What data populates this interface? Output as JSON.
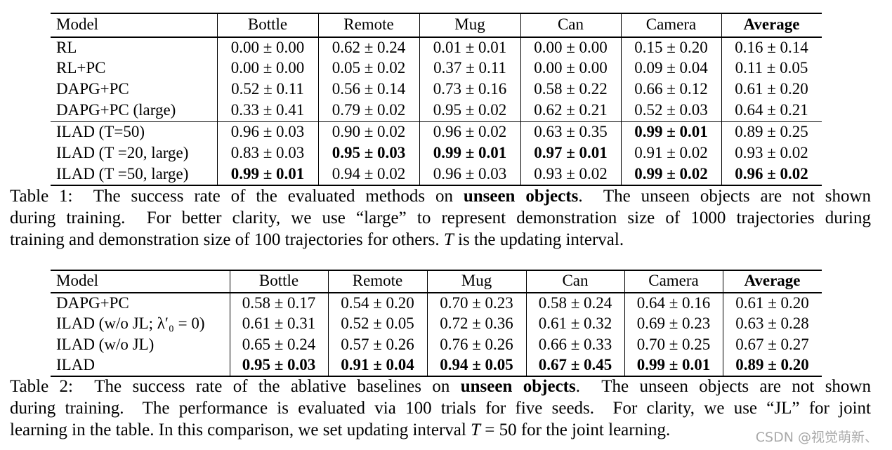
{
  "tables": [
    {
      "header": [
        "Model",
        "Bottle",
        "Remote",
        "Mug",
        "Can",
        "Camera",
        "Average"
      ],
      "header_bold": [
        false,
        false,
        false,
        false,
        false,
        false,
        true
      ],
      "rows": [
        {
          "model": "RL",
          "values": [
            "0.00 ± 0.00",
            "0.62 ± 0.24",
            "0.01 ± 0.01",
            "0.00 ± 0.00",
            "0.15 ± 0.20",
            "0.16 ± 0.14"
          ],
          "bold": [
            false,
            false,
            false,
            false,
            false,
            false
          ]
        },
        {
          "model": "RL+PC",
          "values": [
            "0.00 ± 0.00",
            "0.05 ± 0.02",
            "0.37 ± 0.11",
            "0.00 ± 0.00",
            "0.09 ± 0.04",
            "0.11 ± 0.05"
          ],
          "bold": [
            false,
            false,
            false,
            false,
            false,
            false
          ]
        },
        {
          "model": "DAPG+PC",
          "values": [
            "0.52 ± 0.11",
            "0.56 ± 0.14",
            "0.73 ± 0.16",
            "0.58 ± 0.22",
            "0.66 ± 0.12",
            "0.61 ± 0.20"
          ],
          "bold": [
            false,
            false,
            false,
            false,
            false,
            false
          ]
        },
        {
          "model": "DAPG+PC (large)",
          "values": [
            "0.33 ± 0.41",
            "0.79 ± 0.02",
            "0.95 ± 0.02",
            "0.62 ± 0.21",
            "0.52 ± 0.03",
            "0.64 ± 0.21"
          ],
          "bold": [
            false,
            false,
            false,
            false,
            false,
            false
          ]
        },
        {
          "model": "ILAD (T=50)",
          "values": [
            "0.96 ± 0.03",
            "0.90 ± 0.02",
            "0.96 ± 0.02",
            "0.63 ± 0.35",
            "0.99 ± 0.01",
            "0.89 ± 0.25"
          ],
          "bold": [
            false,
            false,
            false,
            false,
            true,
            false
          ]
        },
        {
          "model": "ILAD (T =20, large)",
          "values": [
            "0.83 ± 0.03",
            "0.95 ± 0.03",
            "0.99 ± 0.01",
            "0.97 ± 0.01",
            "0.91 ± 0.02",
            "0.93 ± 0.02"
          ],
          "bold": [
            false,
            true,
            true,
            true,
            false,
            false
          ]
        },
        {
          "model": "ILAD (T =50, large)",
          "values": [
            "0.99 ± 0.01",
            "0.94 ± 0.02",
            "0.96 ± 0.03",
            "0.93 ± 0.02",
            "0.99 ± 0.02",
            "0.96 ± 0.02"
          ],
          "bold": [
            true,
            false,
            false,
            false,
            true,
            true
          ]
        }
      ],
      "caption": [
        [
          {
            "text": "Table 1:  The success rate of the evaluated methods on ",
            "style": "normal"
          },
          {
            "text": "unseen objects",
            "style": "bold"
          },
          {
            "text": ".  The unseen objects are not shown",
            "style": "normal"
          }
        ],
        [
          {
            "text": "during training.  For better clarity, we use “large” to represent demonstration size of 1000 trajectories during",
            "style": "normal"
          }
        ],
        [
          {
            "text": "training and demonstration size of 100 trajectories for others. ",
            "style": "normal"
          },
          {
            "text": "T",
            "style": "italic"
          },
          {
            "text": " is the updating interval.",
            "style": "normal"
          }
        ]
      ]
    },
    {
      "header": [
        "Model",
        "Bottle",
        "Remote",
        "Mug",
        "Can",
        "Camera",
        "Average"
      ],
      "header_bold": [
        false,
        false,
        false,
        false,
        false,
        false,
        true
      ],
      "rows": [
        {
          "model": "DAPG+PC",
          "values": [
            "0.58 ± 0.17",
            "0.54 ± 0.20",
            "0.70 ± 0.23",
            "0.58 ± 0.24",
            "0.64 ± 0.16",
            "0.61 ± 0.20"
          ],
          "bold": [
            false,
            false,
            false,
            false,
            false,
            false
          ]
        },
        {
          "model": "ILAD (w/o JL; λ′₀ = 0)",
          "values": [
            "0.61 ± 0.31",
            "0.52 ± 0.05",
            "0.72 ± 0.36",
            "0.61 ± 0.32",
            "0.69 ± 0.23",
            "0.63 ± 0.28"
          ],
          "bold": [
            false,
            false,
            false,
            false,
            false,
            false
          ]
        },
        {
          "model": "ILAD (w/o JL)",
          "values": [
            "0.65 ± 0.24",
            "0.57 ± 0.26",
            "0.76 ± 0.26",
            "0.66 ± 0.33",
            "0.70 ± 0.25",
            "0.67 ± 0.27"
          ],
          "bold": [
            false,
            false,
            false,
            false,
            false,
            false
          ]
        },
        {
          "model": "ILAD",
          "values": [
            "0.95 ± 0.03",
            "0.91 ± 0.04",
            "0.94 ± 0.05",
            "0.67 ± 0.45",
            "0.99 ± 0.01",
            "0.89 ± 0.20"
          ],
          "bold": [
            true,
            true,
            true,
            true,
            true,
            true
          ]
        }
      ],
      "caption": [
        [
          {
            "text": "Table 2:  The success rate of the ablative baselines on ",
            "style": "normal"
          },
          {
            "text": "unseen objects",
            "style": "bold"
          },
          {
            "text": ".  The unseen objects are not shown",
            "style": "normal"
          }
        ],
        [
          {
            "text": "during training.  The performance is evaluated via 100 trials for five seeds.  For clarity, we use “JL” for joint",
            "style": "normal"
          }
        ],
        [
          {
            "text": "learning in the table. In this comparison, we set updating interval ",
            "style": "normal"
          },
          {
            "text": "T",
            "style": "italic"
          },
          {
            "text": " = 50 for the joint learning.",
            "style": "normal"
          }
        ]
      ]
    }
  ],
  "watermark": "CSDN @视觉萌新、"
}
